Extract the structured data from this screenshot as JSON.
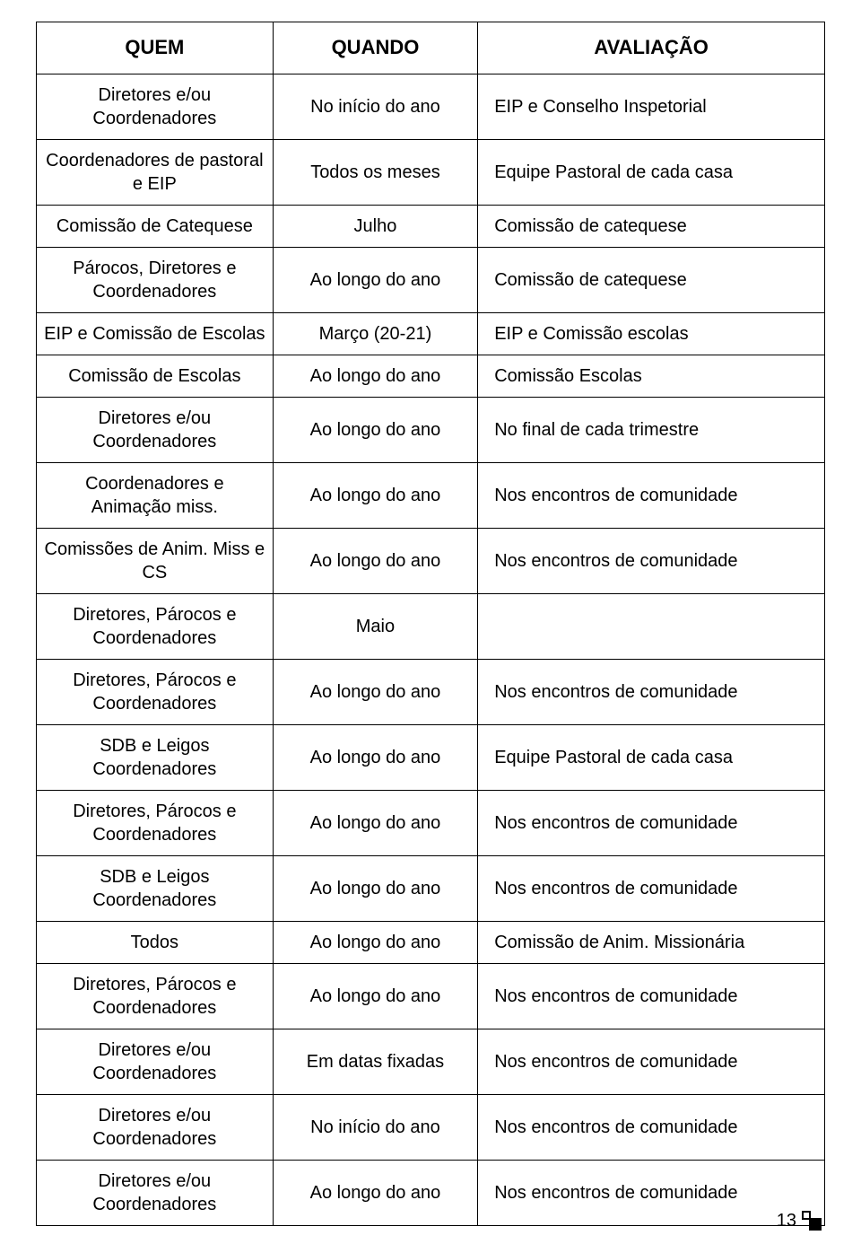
{
  "table": {
    "headers": [
      "QUEM",
      "QUANDO",
      "AVALIAÇÃO"
    ],
    "rows": [
      [
        "Diretores e/ou Coordenadores",
        "No início do ano",
        "EIP e Conselho Inspetorial"
      ],
      [
        "Coordenadores de pastoral e EIP",
        "Todos os meses",
        "Equipe Pastoral de cada casa"
      ],
      [
        "Comissão de Catequese",
        "Julho",
        "Comissão de catequese"
      ],
      [
        "Párocos, Diretores e Coordenadores",
        "Ao longo do ano",
        "Comissão de catequese"
      ],
      [
        "EIP e Comissão de Escolas",
        "Março (20-21)",
        "EIP e Comissão escolas"
      ],
      [
        "Comissão de Escolas",
        "Ao longo do ano",
        "Comissão Escolas"
      ],
      [
        "Diretores e/ou Coordenadores",
        "Ao longo do ano",
        "No final de cada trimestre"
      ],
      [
        "Coordenadores e Animação miss.",
        "Ao longo do ano",
        "Nos encontros de comunidade"
      ],
      [
        "Comissões de Anim. Miss e CS",
        "Ao longo do ano",
        "Nos encontros de comunidade"
      ],
      [
        "Diretores, Párocos e Coordenadores",
        "Maio",
        ""
      ],
      [
        "Diretores, Párocos e Coordenadores",
        "Ao longo do ano",
        "Nos encontros de comunidade"
      ],
      [
        "SDB e Leigos Coordenadores",
        "Ao longo do ano",
        "Equipe Pastoral de cada casa"
      ],
      [
        "Diretores, Párocos e Coordenadores",
        "Ao longo do ano",
        "Nos encontros de comunidade"
      ],
      [
        "SDB e Leigos Coordenadores",
        "Ao longo do ano",
        "Nos encontros de comunidade"
      ],
      [
        "Todos",
        "Ao longo do ano",
        "Comissão de Anim. Missionária"
      ],
      [
        "Diretores, Párocos e Coordenadores",
        "Ao longo do ano",
        "Nos encontros de comunidade"
      ],
      [
        "Diretores e/ou Coordenadores",
        "Em datas fixadas",
        "Nos encontros de comunidade"
      ],
      [
        "Diretores e/ou Coordenadores",
        "No início do ano",
        "Nos encontros de comunidade"
      ],
      [
        "Diretores e/ou Coordenadores",
        "Ao longo do ano",
        "Nos encontros de comunidade"
      ]
    ]
  },
  "page_number": "13"
}
